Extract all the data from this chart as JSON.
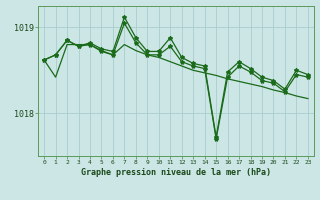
{
  "background_color": "#cce5e5",
  "grid_color": "#aacccc",
  "line_color": "#1a6b1a",
  "title": "Graphe pression niveau de la mer (hPa)",
  "xlabel_ticks": [
    0,
    1,
    2,
    3,
    4,
    5,
    6,
    7,
    8,
    9,
    10,
    11,
    12,
    13,
    14,
    15,
    16,
    17,
    18,
    19,
    20,
    21,
    22,
    23
  ],
  "ylim": [
    1017.5,
    1019.25
  ],
  "yticks": [
    1018,
    1019
  ],
  "line1_y": [
    1018.62,
    1018.68,
    1018.85,
    1018.78,
    1018.82,
    1018.75,
    1018.72,
    1019.12,
    1018.88,
    1018.72,
    1018.72,
    1018.88,
    1018.65,
    1018.58,
    1018.55,
    1017.72,
    1018.48,
    1018.6,
    1018.52,
    1018.42,
    1018.38,
    1018.28,
    1018.5,
    1018.45
  ],
  "line2_y": [
    1018.62,
    1018.42,
    1018.8,
    1018.8,
    1018.8,
    1018.73,
    1018.68,
    1018.8,
    1018.73,
    1018.68,
    1018.65,
    1018.6,
    1018.55,
    1018.5,
    1018.47,
    1018.44,
    1018.4,
    1018.37,
    1018.34,
    1018.31,
    1018.27,
    1018.24,
    1018.2,
    1018.17
  ],
  "line3_y": [
    1018.62,
    1018.68,
    1018.85,
    1018.78,
    1018.8,
    1018.72,
    1018.68,
    1019.05,
    1018.82,
    1018.68,
    1018.68,
    1018.78,
    1018.6,
    1018.55,
    1018.52,
    1017.7,
    1018.42,
    1018.55,
    1018.48,
    1018.38,
    1018.35,
    1018.25,
    1018.45,
    1018.42
  ]
}
